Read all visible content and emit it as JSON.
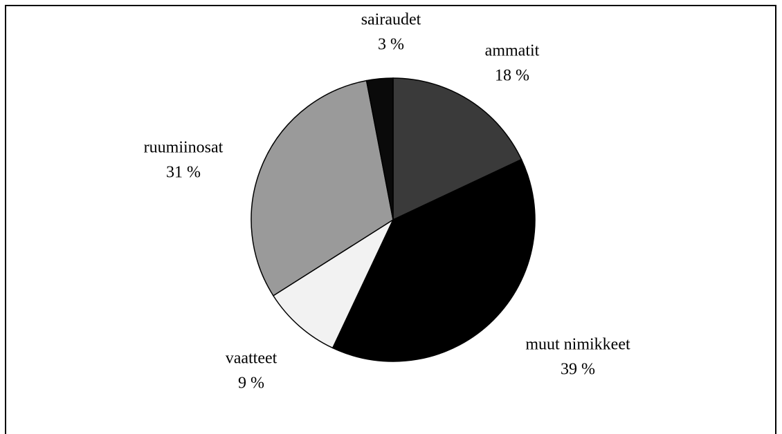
{
  "chart_data": {
    "type": "pie",
    "categories": [
      "ammatit",
      "muut nimikkeet",
      "vaatteet",
      "ruumiinosat",
      "sairaudet"
    ],
    "values": [
      18,
      39,
      9,
      31,
      3
    ],
    "value_labels": [
      "18 %",
      "39 %",
      "9 %",
      "31 %",
      "3 %"
    ],
    "colors": [
      "#3a3a3a",
      "#000000",
      "#f2f2f2",
      "#9a9a9a",
      "#0a0a0a"
    ]
  }
}
